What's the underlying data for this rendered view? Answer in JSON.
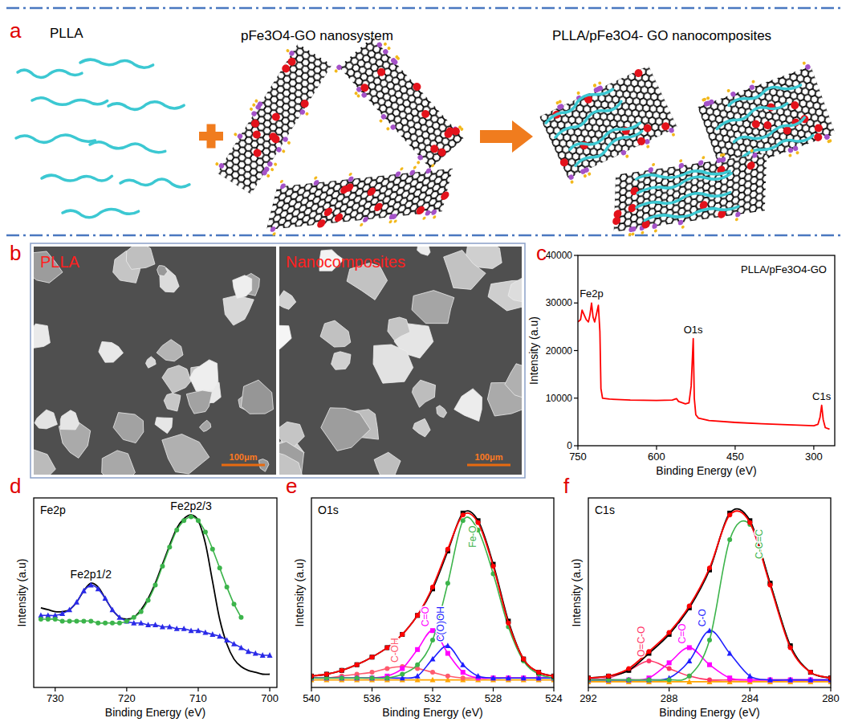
{
  "schematic": {
    "panel": "a",
    "labels": [
      "PLLA",
      "pFe3O4-GO nanosystem",
      "PLLA/pFe3O4- GO nanocomposites"
    ]
  },
  "sem": {
    "panel": "b",
    "images": [
      {
        "label": "PLLA",
        "scale_bar": "100μm"
      },
      {
        "label": "Nanocomposites",
        "scale_bar": "100μm"
      }
    ]
  },
  "chart_data": [
    {
      "type": "line",
      "panel": "c",
      "title": "PLLA/pFe3O4-GO",
      "x_label": "Binding Energy (eV)",
      "y_label": "Intensity (a.u)",
      "x": [
        750,
        745,
        742,
        738,
        734,
        730,
        727,
        724,
        721,
        718,
        715,
        711,
        708,
        706,
        703,
        690,
        650,
        600,
        570,
        562,
        558,
        545,
        538,
        534,
        530,
        528,
        525,
        520,
        500,
        450,
        400,
        350,
        300,
        292,
        288,
        285,
        282,
        278,
        270
      ],
      "series": [
        {
          "color": "#ff0000",
          "line_style": "solid",
          "values": [
            26000,
            26500,
            28500,
            27500,
            26500,
            26000,
            27500,
            30000,
            27000,
            26000,
            27500,
            29500,
            24000,
            12000,
            10000,
            9800,
            9600,
            9500,
            9600,
            9900,
            9300,
            8800,
            9000,
            12500,
            22500,
            10000,
            6500,
            5800,
            5300,
            4900,
            4600,
            4400,
            4200,
            4500,
            6000,
            8500,
            5500,
            3800,
            3500
          ]
        }
      ],
      "annotations": [
        {
          "text": "Fe2p",
          "x": 724
        },
        {
          "text": "O1s",
          "x": 530
        },
        {
          "text": "C1s",
          "x": 285
        }
      ],
      "xlim": [
        750,
        260
      ],
      "xticks": [
        750,
        600,
        450,
        300
      ],
      "ylim": [
        0,
        40000
      ],
      "yticks": [
        0,
        10000,
        20000,
        30000,
        40000
      ]
    },
    {
      "type": "line",
      "panel": "d",
      "title": "Fe2p",
      "x_label": "Binding Energy (eV)",
      "y_label": "Intensity (a.u)",
      "tick_labels": "x",
      "x": [
        732,
        731,
        730,
        729,
        728,
        727,
        726,
        725,
        724,
        723,
        722,
        721,
        720,
        719,
        718,
        717,
        716,
        715,
        714,
        713,
        712,
        711,
        710,
        709,
        708,
        707,
        706,
        705,
        704,
        703,
        702,
        701,
        700
      ],
      "series": [
        {
          "color": "#000000",
          "line_style": "solid",
          "values": [
            42,
            41,
            40,
            40,
            41,
            45,
            51,
            55,
            53,
            47,
            41,
            37,
            36,
            37,
            41,
            47,
            55,
            65,
            75,
            84,
            89,
            91,
            88,
            76,
            56,
            36,
            23,
            15,
            11,
            9,
            8,
            7,
            7
          ]
        },
        {
          "name": "Fe2p1/2",
          "color": "#2a2ae8",
          "line_style": "solid",
          "marker": "triangle",
          "values": [
            38,
            38,
            38,
            39,
            41,
            45,
            51,
            54,
            52,
            47,
            41,
            37,
            35,
            34,
            34,
            33,
            33,
            32,
            32,
            31,
            31,
            30,
            30,
            29,
            28,
            27,
            25,
            23,
            21,
            19,
            18,
            17,
            17
          ]
        },
        {
          "name": "Fe2p2/3",
          "color": "#3cb44b",
          "line_style": "solid",
          "marker": "circle",
          "values": [
            36,
            36,
            36,
            35,
            35,
            35,
            35,
            35,
            34,
            34,
            34,
            34,
            35,
            37,
            40,
            46,
            54,
            64,
            74,
            83,
            88,
            90,
            88,
            82,
            73,
            63,
            53,
            44,
            37,
            null,
            null,
            null,
            null
          ]
        }
      ],
      "xlim": [
        733,
        699
      ],
      "xticks": [
        730,
        720,
        710,
        700
      ],
      "ylim": [
        0,
        100
      ]
    },
    {
      "type": "line",
      "panel": "e",
      "title": "O1s",
      "x_label": "Binding Energy (eV)",
      "y_label": "Intensity (a.u)",
      "tick_labels": "x",
      "x": [
        540,
        539,
        538,
        537,
        536,
        535,
        534,
        533,
        532,
        531,
        530,
        529,
        528,
        527,
        526,
        525,
        524
      ],
      "series": [
        {
          "color": "#ffa500",
          "line_style": "solid",
          "marker": "triangle",
          "values": [
            4,
            4,
            4,
            4,
            4,
            4,
            4,
            4,
            4,
            4,
            4,
            4,
            4,
            4,
            4,
            4,
            4
          ]
        },
        {
          "name": "C-OH",
          "color": "#ff5a6e",
          "line_style": "solid",
          "marker": "circle",
          "values": [
            5,
            5,
            6,
            7,
            8,
            10,
            11,
            10,
            8,
            6,
            5,
            5,
            5,
            5,
            5,
            5,
            5
          ]
        },
        {
          "name": "C=O",
          "color": "#ff00ff",
          "line_style": "solid",
          "marker": "square",
          "values": [
            5,
            5,
            5,
            5,
            5,
            6,
            10,
            20,
            30,
            18,
            8,
            5,
            5,
            5,
            5,
            5,
            5
          ]
        },
        {
          "name": "C(O)OH",
          "color": "#1e1eff",
          "line_style": "solid",
          "marker": "triangle",
          "values": [
            5,
            5,
            5,
            5,
            5,
            5,
            5,
            6,
            15,
            22,
            12,
            6,
            5,
            5,
            5,
            5,
            5
          ]
        },
        {
          "name": "Fe-O",
          "color": "#3cb44b",
          "line_style": "solid",
          "marker": "circle",
          "values": [
            5,
            5,
            5,
            5,
            5,
            5,
            7,
            12,
            25,
            55,
            88,
            83,
            60,
            32,
            14,
            7,
            5
          ]
        },
        {
          "color": "#000000",
          "line_style": "solid",
          "marker": "square",
          "values": [
            6,
            7,
            9,
            12,
            16,
            21,
            28,
            38,
            52,
            72,
            92,
            88,
            65,
            35,
            15,
            8,
            6
          ]
        },
        {
          "color": "#ff0000",
          "line_style": "solid",
          "marker": "circle",
          "values": [
            6,
            7,
            9,
            12,
            16,
            21,
            28,
            38,
            53,
            73,
            91,
            87,
            64,
            34,
            15,
            8,
            6
          ]
        }
      ],
      "xlim": [
        540,
        524
      ],
      "xticks": [
        540,
        536,
        532,
        528,
        524
      ],
      "ylim": [
        0,
        100
      ]
    },
    {
      "type": "line",
      "panel": "f",
      "title": "C1s",
      "x_label": "Binding Energy (eV)",
      "y_label": "Intensity (a.u)",
      "tick_labels": "x",
      "x": [
        292,
        291,
        290,
        289,
        288,
        287,
        286,
        285,
        284,
        283,
        282,
        281,
        280
      ],
      "series": [
        {
          "color": "#ffa500",
          "line_style": "solid",
          "marker": "triangle",
          "values": [
            3,
            3,
            3,
            3,
            3,
            3,
            3,
            3,
            3,
            3,
            3,
            3,
            3
          ]
        },
        {
          "name": "O=C-O",
          "color": "#ff3366",
          "line_style": "solid",
          "marker": "circle",
          "values": [
            4,
            5,
            9,
            14,
            10,
            6,
            4,
            4,
            4,
            4,
            4,
            4,
            4
          ]
        },
        {
          "name": "C=O",
          "color": "#ff00ff",
          "line_style": "solid",
          "marker": "square",
          "values": [
            4,
            4,
            4,
            5,
            13,
            21,
            12,
            5,
            4,
            4,
            4,
            4,
            4
          ]
        },
        {
          "name": "C-O",
          "color": "#1e1eff",
          "line_style": "solid",
          "marker": "triangle",
          "values": [
            4,
            4,
            4,
            4,
            5,
            14,
            30,
            18,
            6,
            4,
            4,
            4,
            4
          ]
        },
        {
          "name": "C-C=C",
          "color": "#3cb44b",
          "line_style": "solid",
          "marker": "circle",
          "values": [
            4,
            4,
            4,
            4,
            4,
            6,
            25,
            78,
            86,
            55,
            22,
            8,
            5
          ]
        },
        {
          "color": "#000000",
          "line_style": "solid",
          "marker": "square",
          "values": [
            5,
            6,
            9,
            18,
            28,
            42,
            62,
            92,
            88,
            55,
            22,
            8,
            5
          ]
        },
        {
          "color": "#ff0000",
          "line_style": "solid",
          "marker": "circle",
          "values": [
            5,
            6,
            10,
            19,
            29,
            43,
            63,
            91,
            87,
            54,
            21,
            8,
            5
          ]
        }
      ],
      "xlim": [
        292,
        280
      ],
      "xticks": [
        292,
        288,
        284,
        280
      ],
      "ylim": [
        0,
        100
      ]
    }
  ]
}
